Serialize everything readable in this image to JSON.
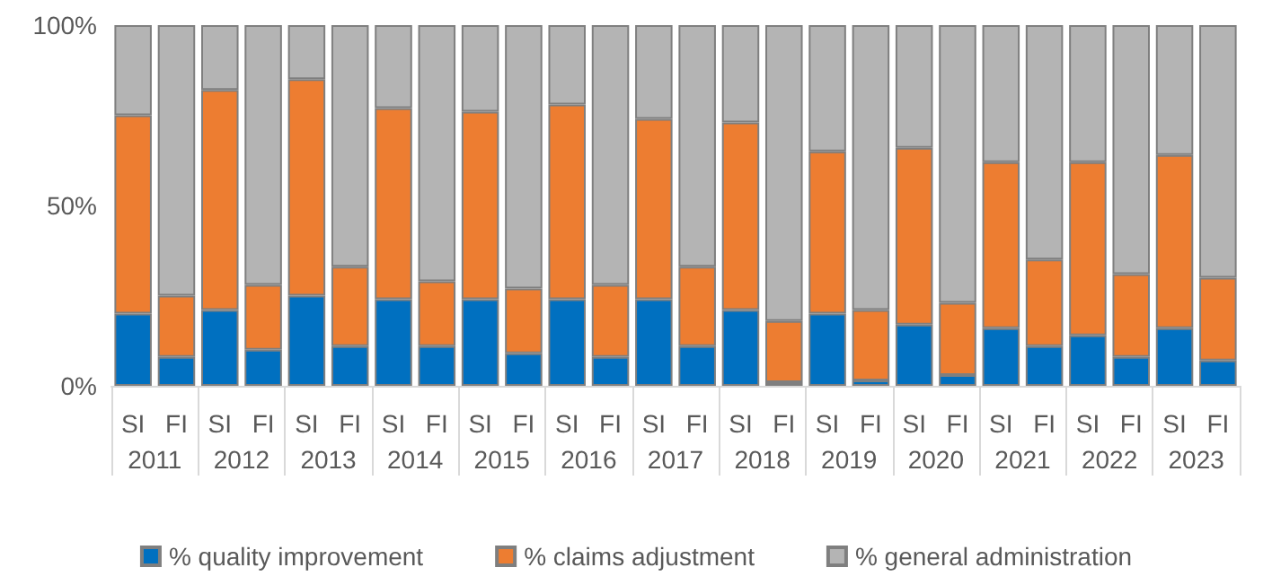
{
  "chart_data": {
    "type": "bar",
    "stacked": true,
    "categories": [
      "SI",
      "FI",
      "SI",
      "FI",
      "SI",
      "FI",
      "SI",
      "FI",
      "SI",
      "FI",
      "SI",
      "FI",
      "SI",
      "FI",
      "SI",
      "FI",
      "SI",
      "FI",
      "SI",
      "FI",
      "SI",
      "FI",
      "SI",
      "FI",
      "SI",
      "FI"
    ],
    "annotations": [
      "2011",
      "2012",
      "2013",
      "2014",
      "2015",
      "2016",
      "2017",
      "2018",
      "2019",
      "2020",
      "2021",
      "2022",
      "2023"
    ],
    "series": [
      {
        "name": "% quality improvement",
        "color": "#0070c0",
        "values": [
          20,
          8,
          21,
          10,
          25,
          11,
          24,
          11,
          24,
          9,
          24,
          8,
          24,
          11,
          21,
          1,
          20,
          1.5,
          17,
          3,
          16,
          11,
          14,
          8,
          16,
          7
        ]
      },
      {
        "name": "% claims adjustment",
        "color": "#ed7d31",
        "values": [
          55,
          17,
          61,
          18,
          60,
          22,
          53,
          18,
          52,
          18,
          54,
          20,
          50,
          22,
          52,
          17,
          45,
          19.5,
          49,
          20,
          46,
          24,
          48,
          23,
          48,
          23
        ]
      },
      {
        "name": "% general administration",
        "color": "#b4b4b4",
        "values": [
          25,
          75,
          18,
          72,
          15,
          67,
          23,
          71,
          24,
          73,
          22,
          72,
          26,
          67,
          27,
          82,
          35,
          79,
          34,
          77,
          38,
          65,
          38,
          69,
          36,
          70
        ]
      }
    ],
    "ylim": [
      0,
      100
    ],
    "yticks": [
      {
        "value": 0,
        "label": "0%"
      },
      {
        "value": 50,
        "label": "50%"
      },
      {
        "value": 100,
        "label": "100%"
      }
    ],
    "grid": false,
    "legend": "bottom"
  }
}
